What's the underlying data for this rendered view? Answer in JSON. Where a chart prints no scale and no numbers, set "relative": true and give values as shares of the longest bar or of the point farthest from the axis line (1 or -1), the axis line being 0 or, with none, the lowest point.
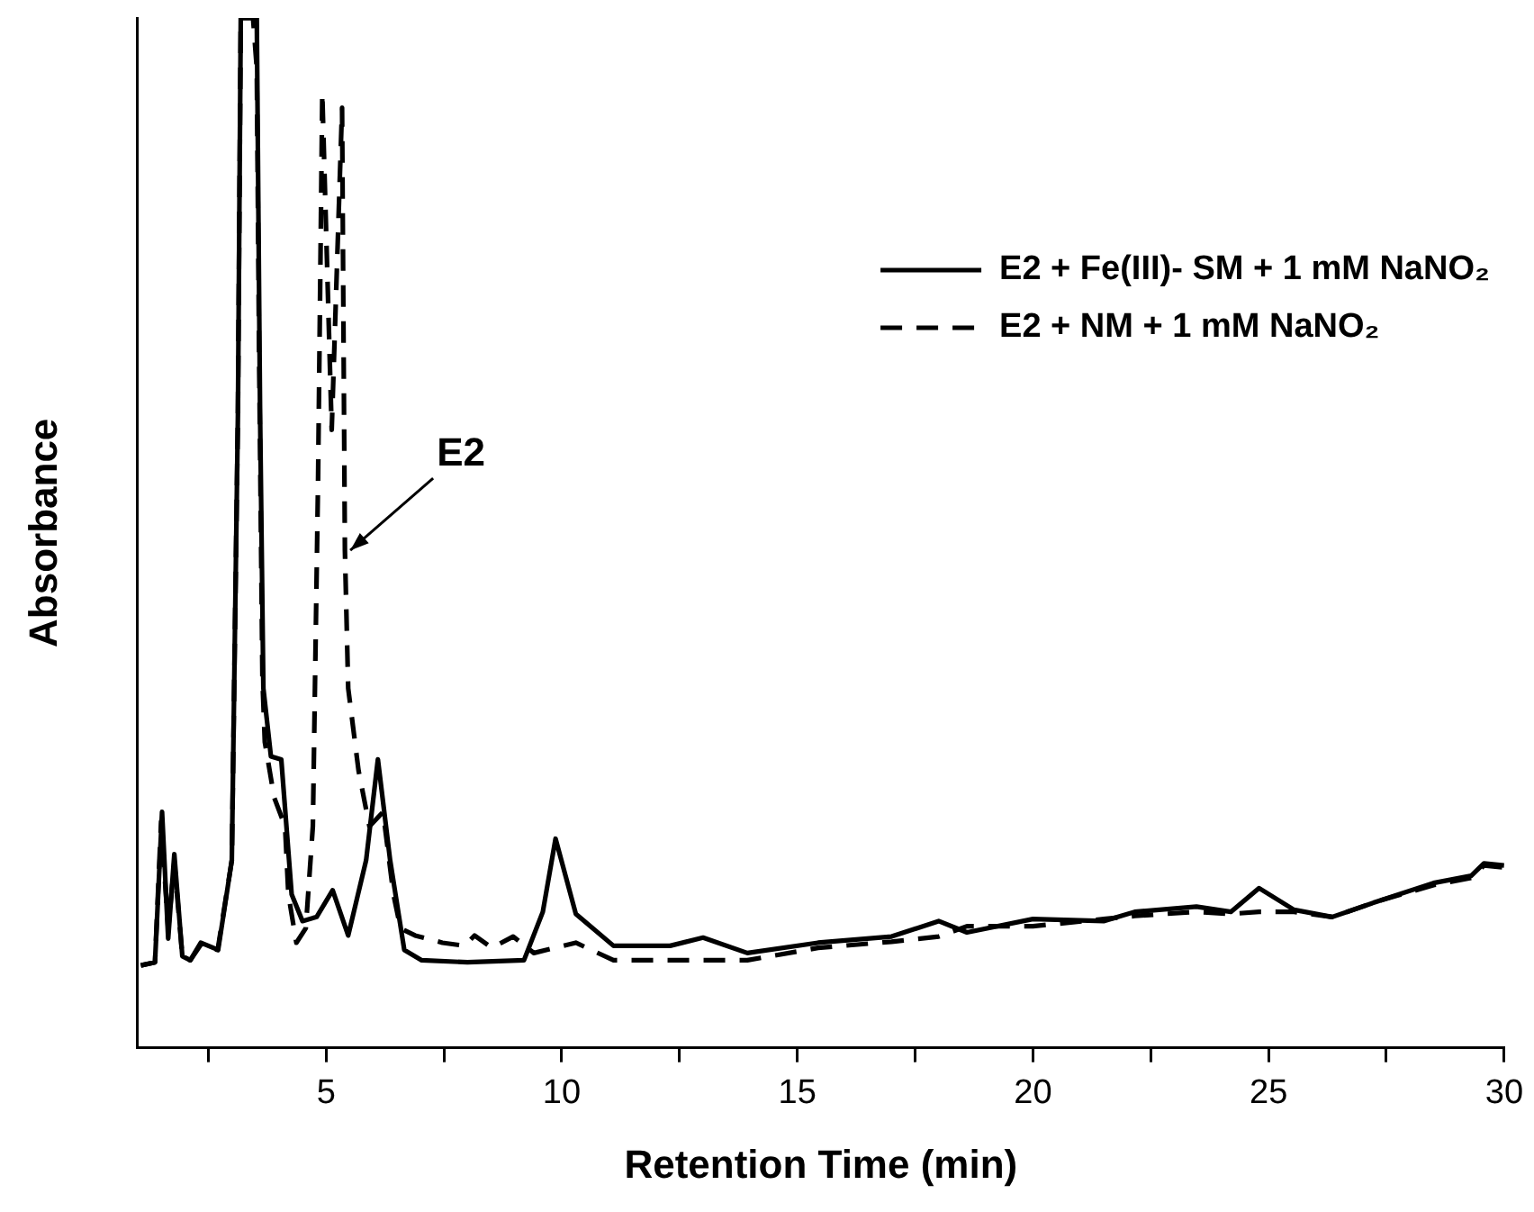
{
  "chart_data": {
    "type": "line",
    "xlabel": "Retention Time (min)",
    "ylabel": "Absorbance",
    "relative": true,
    "grid": false,
    "legend": "top right",
    "marker": "none",
    "xlim": [
      1,
      30
    ],
    "xticks": [
      {
        "value": 2.5,
        "label": null
      },
      5,
      {
        "value": 7.5,
        "label": null
      },
      10,
      {
        "value": 12.5,
        "label": null
      },
      15,
      {
        "value": 17.5,
        "label": null
      },
      20,
      {
        "value": 22.5,
        "label": null
      },
      25,
      {
        "value": 27.5,
        "label": null
      },
      30
    ],
    "series": [
      {
        "name": "E2 + Fe(III)- SM + 1 mM NaNO₂",
        "color": "#000000",
        "line_style": "solid",
        "x": [
          1.07,
          1.37,
          1.52,
          1.65,
          1.78,
          1.95,
          2.12,
          2.34,
          2.71,
          3.0,
          3.13,
          3.19,
          3.53,
          3.6,
          3.67,
          3.83,
          4.05,
          4.27,
          4.5,
          4.8,
          5.14,
          5.47,
          5.85,
          6.1,
          6.36,
          6.66,
          7.03,
          8.0,
          9.2,
          9.6,
          9.87,
          10.3,
          11.1,
          12.3,
          13.0,
          13.94,
          15.44,
          17.0,
          18.0,
          18.6,
          20.0,
          21.5,
          22.16,
          23.47,
          24.2,
          24.8,
          25.54,
          26.35,
          27.3,
          28.5,
          29.3,
          29.57,
          30
        ],
        "values": [
          0.08,
          0.083,
          0.229,
          0.106,
          0.188,
          0.089,
          0.085,
          0.102,
          0.095,
          0.182,
          0.616,
          1.0,
          1.0,
          0.616,
          0.349,
          0.283,
          0.28,
          0.149,
          0.123,
          0.127,
          0.153,
          0.109,
          0.182,
          0.28,
          0.182,
          0.095,
          0.085,
          0.083,
          0.085,
          0.132,
          0.203,
          0.13,
          0.099,
          0.099,
          0.107,
          0.092,
          0.102,
          0.108,
          0.123,
          0.112,
          0.125,
          0.123,
          0.132,
          0.137,
          0.132,
          0.155,
          0.134,
          0.127,
          0.142,
          0.16,
          0.167,
          0.179,
          0.177
        ]
      },
      {
        "name": "E2 + NM + 1 mM NaNO₂",
        "color": "#000000",
        "line_style": "dashed",
        "x": [
          1.07,
          1.37,
          1.5,
          1.65,
          1.78,
          1.95,
          2.12,
          2.34,
          2.7,
          3.0,
          3.13,
          3.19,
          3.45,
          3.53,
          3.58,
          3.65,
          3.7,
          3.9,
          4.13,
          4.2,
          4.37,
          4.57,
          4.72,
          4.83,
          4.92,
          5.12,
          5.34,
          5.4,
          5.47,
          5.69,
          5.92,
          6.21,
          6.43,
          6.58,
          6.89,
          7.47,
          7.94,
          8.15,
          8.52,
          8.97,
          9.41,
          10.3,
          11.1,
          13.0,
          13.94,
          15.44,
          17.0,
          18.0,
          18.6,
          20.0,
          21.5,
          22.16,
          23.47,
          24.2,
          24.8,
          25.54,
          26.35,
          27.3,
          28.5,
          29.3,
          29.57,
          30
        ],
        "values": [
          0.08,
          0.083,
          0.22,
          0.115,
          0.18,
          0.089,
          0.085,
          0.1,
          0.095,
          0.182,
          0.616,
          1.0,
          1.0,
          0.951,
          0.67,
          0.358,
          0.297,
          0.243,
          0.215,
          0.149,
          0.102,
          0.116,
          0.215,
          0.55,
          0.927,
          0.6,
          0.913,
          0.483,
          0.349,
          0.269,
          0.215,
          0.229,
          0.149,
          0.116,
          0.109,
          0.102,
          0.099,
          0.109,
          0.097,
          0.108,
          0.092,
          0.102,
          0.085,
          0.085,
          0.085,
          0.097,
          0.103,
          0.108,
          0.118,
          0.118,
          0.125,
          0.128,
          0.132,
          0.13,
          0.132,
          0.132,
          0.127,
          0.142,
          0.158,
          0.165,
          0.177,
          0.175
        ]
      }
    ],
    "annotations": [
      {
        "text": "E2",
        "x": 5.4,
        "y": 0.483
      }
    ]
  }
}
